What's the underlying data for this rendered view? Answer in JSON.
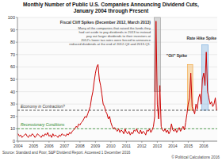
{
  "chart_data": {
    "type": "line",
    "title": "Monthly Number of Public U.S. Companies Announcing Dividend Cuts,",
    "subtitle": "January 2004 through Present",
    "source": "Source: Standard and Poor, S&P Dividend Report. Accessed 1 December 2016",
    "credit": "© Political Calculations 2016",
    "color": "#cc0000",
    "grid": true,
    "ylim": [
      0,
      100
    ],
    "yticks": [
      0,
      10,
      20,
      30,
      40,
      50,
      60,
      70,
      80,
      90,
      100
    ],
    "categories": [
      "2004",
      null,
      null,
      null,
      null,
      null,
      null,
      null,
      null,
      null,
      null,
      null,
      "2005",
      null,
      null,
      null,
      null,
      null,
      null,
      null,
      null,
      null,
      null,
      null,
      "2006",
      null,
      null,
      null,
      null,
      null,
      null,
      null,
      null,
      null,
      null,
      null,
      "2007",
      null,
      null,
      null,
      null,
      null,
      null,
      null,
      null,
      null,
      null,
      null,
      "2008",
      null,
      null,
      null,
      null,
      null,
      null,
      null,
      null,
      null,
      null,
      null,
      "2009",
      null,
      null,
      null,
      null,
      null,
      null,
      null,
      null,
      null,
      null,
      null,
      "2010",
      null,
      null,
      null,
      null,
      null,
      null,
      null,
      null,
      null,
      null,
      null,
      "2011",
      null,
      null,
      null,
      null,
      null,
      null,
      null,
      null,
      null,
      null,
      null,
      "2012",
      null,
      null,
      null,
      null,
      null,
      null,
      null,
      null,
      null,
      null,
      null,
      "2013",
      null,
      null,
      null,
      null,
      null,
      null,
      null,
      null,
      null,
      null,
      null,
      "2014",
      null,
      null,
      null,
      null,
      null,
      null,
      null,
      null,
      null,
      null,
      null,
      "2015",
      null,
      null,
      null,
      null,
      null,
      null,
      null,
      null,
      null,
      null,
      null,
      "2016",
      null,
      null,
      null,
      null,
      null,
      null,
      null,
      null,
      null,
      null
    ],
    "values": [
      6,
      4,
      5,
      3,
      4,
      5,
      6,
      4,
      3,
      5,
      4,
      6,
      5,
      3,
      4,
      6,
      5,
      4,
      3,
      5,
      4,
      6,
      5,
      7,
      4,
      5,
      3,
      6,
      4,
      5,
      4,
      3,
      5,
      4,
      6,
      5,
      5,
      4,
      6,
      5,
      7,
      6,
      8,
      9,
      10,
      12,
      11,
      14,
      13,
      15,
      16,
      18,
      20,
      19,
      22,
      25,
      28,
      35,
      40,
      48,
      55,
      60,
      62,
      50,
      45,
      38,
      30,
      28,
      24,
      22,
      18,
      20,
      15,
      12,
      10,
      11,
      9,
      8,
      10,
      7,
      9,
      8,
      6,
      10,
      7,
      6,
      8,
      5,
      7,
      6,
      9,
      8,
      10,
      7,
      6,
      9,
      6,
      8,
      7,
      5,
      9,
      8,
      10,
      7,
      9,
      12,
      20,
      97,
      30,
      18,
      45,
      12,
      9,
      8,
      10,
      7,
      9,
      6,
      8,
      14,
      9,
      8,
      10,
      7,
      9,
      11,
      8,
      10,
      12,
      9,
      15,
      22,
      30,
      35,
      55,
      28,
      25,
      22,
      30,
      26,
      35,
      38,
      30,
      50,
      55,
      45,
      72,
      40,
      35,
      30,
      32,
      28,
      30,
      35,
      25
    ],
    "reference_lines": [
      {
        "value": 25,
        "label": "Economy in Contraction?",
        "color": "#333333"
      },
      {
        "value": 10,
        "label": "Recessionary Conditions",
        "color": "#2e8b2e"
      }
    ],
    "annotations": [
      {
        "text": "Fiscal Cliff Spikes (December 2012, March 2013)",
        "lines": [
          "Many of the companies that raised the funds they",
          "had set aside to pay dividends in 2013 to instead",
          "pay out larger dividends to their investors at",
          "2012's lower tax rates were forced to announce",
          "reduced dividends at the end of 2012-Q4 and 2013-Q1."
        ],
        "x_span": [
          106,
          110
        ],
        "y_span": [
          40,
          100
        ],
        "color": "#999999"
      },
      {
        "text": "\"Oil\" Spike",
        "x_span": [
          132,
          135
        ],
        "y_span": [
          25,
          62
        ],
        "color": "#f0a030"
      },
      {
        "text": "Rate Hike Spike",
        "x_span": [
          143,
          147
        ],
        "y_span": [
          25,
          78
        ],
        "color": "#6fa8dc"
      }
    ]
  }
}
